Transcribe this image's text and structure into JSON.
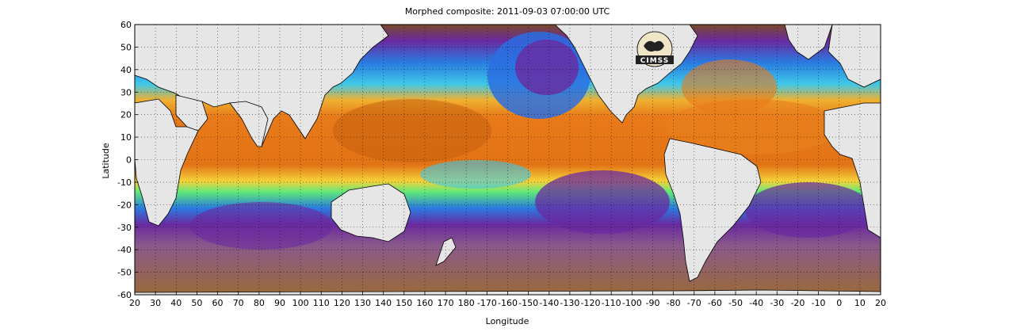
{
  "title": "Morphed composite: 2011-09-03 07:00:00 UTC",
  "xlabel": "Longitude",
  "ylabel": "Latitude",
  "logo": {
    "name": "cimss-logo",
    "text": "CIMSS"
  },
  "colors": {
    "land": "#e6e6e6",
    "coast": "#000000",
    "moist_high": "#e87a1a",
    "moist_high_dark": "#b85a10",
    "moist_mid": "#f5d33a",
    "moist_lowmid": "#5ee87a",
    "moist_low": "#2a7ae0",
    "moist_verylow": "#6a2aa0",
    "dry": "#9a6a3a"
  },
  "chart_data": {
    "type": "heatmap",
    "title": "Morphed composite: 2011-09-03 07:00:00 UTC",
    "xlabel": "Longitude",
    "ylabel": "Latitude",
    "xlim": [
      20,
      380
    ],
    "ylim": [
      -60,
      60
    ],
    "x_ticks": [
      20,
      30,
      40,
      50,
      60,
      70,
      80,
      90,
      100,
      110,
      120,
      130,
      140,
      150,
      160,
      170,
      180,
      190,
      200,
      210,
      220,
      230,
      240,
      250,
      260,
      270,
      280,
      290,
      300,
      310,
      320,
      330,
      340,
      350,
      360,
      370,
      380
    ],
    "x_tick_labels": [
      "20",
      "30",
      "40",
      "50",
      "60",
      "70",
      "80",
      "90",
      "100",
      "110",
      "120",
      "130",
      "140",
      "150",
      "160",
      "170",
      "180",
      "-170",
      "-160",
      "-150",
      "-140",
      "-130",
      "-120",
      "-110",
      "-100",
      "-90",
      "-80",
      "-70",
      "-60",
      "-50",
      "-40",
      "-30",
      "-20",
      "-10",
      "0",
      "10",
      "20"
    ],
    "y_ticks": [
      60,
      50,
      40,
      30,
      20,
      10,
      0,
      -10,
      -20,
      -30,
      -40,
      -50,
      -60
    ],
    "y_tick_labels": [
      "60",
      "50",
      "40",
      "30",
      "20",
      "10",
      "0",
      "-10",
      "-20",
      "-30",
      "-40",
      "-50",
      "-60"
    ],
    "grid": true
  }
}
